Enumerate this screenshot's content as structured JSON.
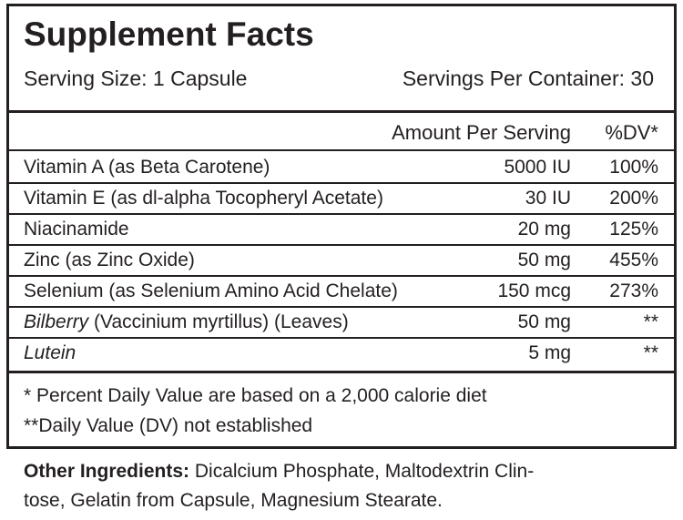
{
  "header": {
    "title": "Supplement Facts",
    "serving_size": "Serving Size: 1 Capsule",
    "servings_per_container": "Servings Per Container: 30"
  },
  "table": {
    "columns": [
      "Amount Per Serving",
      "%DV*"
    ],
    "rows": [
      {
        "name": "Vitamin A (as Beta Carotene)",
        "amount": "5000 IU",
        "dv": "100%"
      },
      {
        "name": "Vitamin E (as dl-alpha Tocopheryl Acetate)",
        "amount": "30 IU",
        "dv": "200%"
      },
      {
        "name": "Niacinamide",
        "amount": "20 mg",
        "dv": "125%"
      },
      {
        "name": "Zinc (as Zinc Oxide)",
        "amount": "50 mg",
        "dv": "455%"
      },
      {
        "name": "Selenium (as Selenium Amino Acid Chelate)",
        "amount": "150 mcg",
        "dv": "273%"
      },
      {
        "name": "Bilberry",
        "italic": true,
        "detail": "(Vaccinium myrtillus) (Leaves)",
        "amount": "50 mg",
        "dv": "**"
      },
      {
        "name": "Lutein",
        "italic": true,
        "amount": "5 mg",
        "dv": "**"
      }
    ]
  },
  "footnotes": [
    "* Percent Daily Value are based on a 2,000 calorie diet",
    "**Daily Value (DV) not established"
  ],
  "other_ingredients": {
    "label": "Other Ingredients:",
    "lines": [
      "Dicalcium Phosphate, Maltodextrin Clin-",
      "tose, Gelatin from Capsule, Magnesium Stearate."
    ]
  }
}
